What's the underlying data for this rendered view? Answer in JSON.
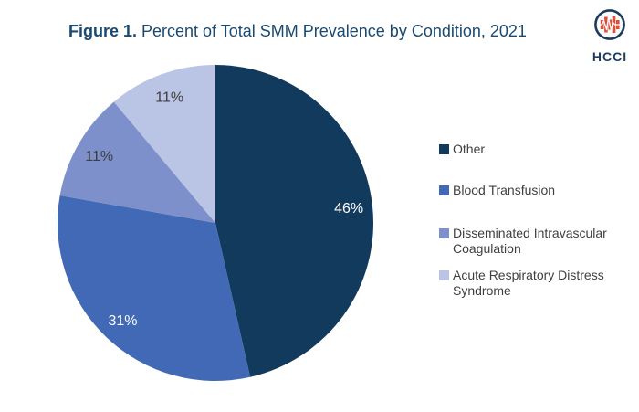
{
  "title": {
    "prefix": "Figure 1.",
    "rest": " Percent of Total SMM Prevalence by Condition, 2021"
  },
  "logo": {
    "text": "HCCI"
  },
  "chart_data": {
    "type": "pie",
    "title": "Percent of Total SMM Prevalence by Condition, 2021",
    "categories": [
      "Other",
      "Blood Transfusion",
      "Disseminated Intravascular Coagulation",
      "Acute Respiratory Distress Syndrome"
    ],
    "values": [
      46,
      31,
      11,
      11
    ],
    "unit": "%",
    "slice_labels": [
      "46%",
      "31%",
      "11%",
      "11%"
    ],
    "colors": [
      "#123A5C",
      "#4169B5",
      "#7D90CC",
      "#BAC4E4"
    ],
    "slice_label_colors": [
      "#FFFFFF",
      "#FFFFFF",
      "#3F3F3F",
      "#3F3F3F"
    ],
    "start_angle_deg": 0,
    "direction": "clockwise",
    "legend_position": "right",
    "title_color": "#1A4971",
    "legend_text_color": "#3F3F3F"
  }
}
